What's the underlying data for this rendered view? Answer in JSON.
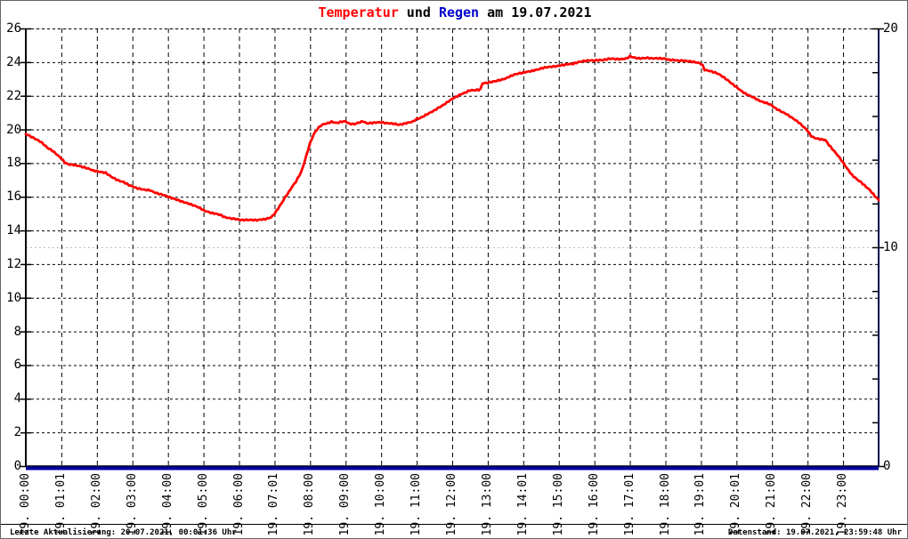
{
  "title": {
    "part_red": "Temperatur",
    "part_mid": " und ",
    "part_blue": "Regen",
    "part_end": " am 19.07.2021"
  },
  "colors": {
    "temperature": "#ff0000",
    "rain": "#0000a0",
    "title_red": "#ff0000",
    "title_blue": "#0000cc",
    "grid_major": "#000000",
    "grid_secondary": "#bdbdbd",
    "axis_left": "#000000",
    "axis_right": "#000050"
  },
  "footer": {
    "left": "Letzte Aktualisierung: 20.07.2021, 00:01:36 Uhr",
    "right": "Datenstand: 19.07.2021, 23:59:48 Uhr"
  },
  "chart_data": {
    "type": "line",
    "title": "Temperatur und Regen am 19.07.2021",
    "grid": true,
    "x_axis": {
      "range_hours": [
        0,
        24
      ],
      "tick_hours": [
        0,
        1,
        2,
        3,
        4,
        5,
        6,
        7,
        8,
        9,
        10,
        11,
        12,
        13,
        14,
        15,
        16,
        17,
        18,
        19,
        20,
        21,
        22,
        23
      ],
      "labels": [
        "19. 00:00",
        "19. 01:01",
        "19. 02:00",
        "19. 03:00",
        "19. 04:00",
        "19. 05:00",
        "19. 06:00",
        "19. 07:01",
        "19. 08:00",
        "19. 09:00",
        "19. 10:00",
        "19. 11:00",
        "19. 12:00",
        "19. 13:00",
        "19. 14:01",
        "19. 15:00",
        "19. 16:00",
        "19. 17:01",
        "19. 18:00",
        "19. 19:01",
        "19. 20:01",
        "19. 21:00",
        "19. 22:00",
        "19. 23:00"
      ]
    },
    "y_left": {
      "name": "Temperatur",
      "range": [
        0,
        26
      ],
      "tick_step": 2,
      "labels": [
        "0",
        "2",
        "4",
        "6",
        "8",
        "10",
        "12",
        "14",
        "16",
        "18",
        "20",
        "22",
        "24",
        "26"
      ]
    },
    "y_right": {
      "name": "Regen",
      "range": [
        0,
        20
      ],
      "tick_step": 2,
      "labels": [
        "0",
        "10",
        "20"
      ],
      "label_values": [
        0,
        10,
        20
      ],
      "secondary_grid_values": [
        10,
        20
      ]
    },
    "series": [
      {
        "name": "Temperatur",
        "axis": "left",
        "color": "#ff0000",
        "points": [
          [
            0.0,
            19.7
          ],
          [
            0.1,
            19.6
          ],
          [
            0.25,
            19.45
          ],
          [
            0.4,
            19.3
          ],
          [
            0.5,
            19.15
          ],
          [
            0.6,
            18.95
          ],
          [
            0.75,
            18.75
          ],
          [
            0.9,
            18.45
          ],
          [
            1.0,
            18.25
          ],
          [
            1.1,
            18.0
          ],
          [
            1.2,
            17.9
          ],
          [
            1.35,
            17.9
          ],
          [
            1.5,
            17.85
          ],
          [
            1.6,
            17.8
          ],
          [
            1.75,
            17.7
          ],
          [
            1.9,
            17.55
          ],
          [
            2.0,
            17.5
          ],
          [
            2.1,
            17.45
          ],
          [
            2.25,
            17.4
          ],
          [
            2.4,
            17.2
          ],
          [
            2.5,
            17.1
          ],
          [
            2.6,
            17.0
          ],
          [
            2.75,
            16.9
          ],
          [
            2.9,
            16.7
          ],
          [
            3.0,
            16.6
          ],
          [
            3.1,
            16.5
          ],
          [
            3.2,
            16.45
          ],
          [
            3.35,
            16.4
          ],
          [
            3.5,
            16.4
          ],
          [
            3.6,
            16.3
          ],
          [
            3.75,
            16.2
          ],
          [
            3.9,
            16.1
          ],
          [
            4.0,
            16.0
          ],
          [
            4.1,
            15.9
          ],
          [
            4.25,
            15.8
          ],
          [
            4.4,
            15.7
          ],
          [
            4.5,
            15.65
          ],
          [
            4.6,
            15.6
          ],
          [
            4.75,
            15.5
          ],
          [
            4.9,
            15.35
          ],
          [
            5.0,
            15.2
          ],
          [
            5.1,
            15.1
          ],
          [
            5.25,
            15.0
          ],
          [
            5.4,
            14.95
          ],
          [
            5.5,
            14.9
          ],
          [
            5.6,
            14.8
          ],
          [
            5.75,
            14.75
          ],
          [
            5.9,
            14.7
          ],
          [
            6.0,
            14.65
          ],
          [
            6.1,
            14.6
          ],
          [
            6.25,
            14.6
          ],
          [
            6.4,
            14.6
          ],
          [
            6.5,
            14.6
          ],
          [
            6.6,
            14.65
          ],
          [
            6.75,
            14.7
          ],
          [
            6.9,
            14.8
          ],
          [
            7.0,
            15.0
          ],
          [
            7.1,
            15.3
          ],
          [
            7.2,
            15.6
          ],
          [
            7.3,
            15.95
          ],
          [
            7.4,
            16.25
          ],
          [
            7.5,
            16.6
          ],
          [
            7.6,
            16.9
          ],
          [
            7.7,
            17.3
          ],
          [
            7.75,
            17.5
          ],
          [
            7.8,
            17.8
          ],
          [
            7.9,
            18.5
          ],
          [
            8.0,
            19.2
          ],
          [
            8.1,
            19.7
          ],
          [
            8.2,
            20.0
          ],
          [
            8.3,
            20.2
          ],
          [
            8.4,
            20.3
          ],
          [
            8.5,
            20.35
          ],
          [
            8.6,
            20.45
          ],
          [
            8.75,
            20.4
          ],
          [
            8.9,
            20.5
          ],
          [
            9.0,
            20.5
          ],
          [
            9.1,
            20.35
          ],
          [
            9.25,
            20.3
          ],
          [
            9.4,
            20.4
          ],
          [
            9.5,
            20.45
          ],
          [
            9.6,
            20.35
          ],
          [
            9.75,
            20.4
          ],
          [
            9.9,
            20.45
          ],
          [
            10.0,
            20.45
          ],
          [
            10.1,
            20.4
          ],
          [
            10.25,
            20.35
          ],
          [
            10.4,
            20.3
          ],
          [
            10.5,
            20.25
          ],
          [
            10.6,
            20.3
          ],
          [
            10.75,
            20.4
          ],
          [
            10.9,
            20.5
          ],
          [
            11.0,
            20.65
          ],
          [
            11.1,
            20.7
          ],
          [
            11.25,
            20.85
          ],
          [
            11.4,
            21.0
          ],
          [
            11.5,
            21.1
          ],
          [
            11.6,
            21.25
          ],
          [
            11.75,
            21.45
          ],
          [
            11.9,
            21.7
          ],
          [
            12.0,
            21.85
          ],
          [
            12.1,
            21.95
          ],
          [
            12.25,
            22.1
          ],
          [
            12.4,
            22.2
          ],
          [
            12.5,
            22.3
          ],
          [
            12.6,
            22.3
          ],
          [
            12.75,
            22.35
          ],
          [
            12.8,
            22.4
          ],
          [
            12.85,
            22.75
          ],
          [
            13.0,
            22.8
          ],
          [
            13.1,
            22.85
          ],
          [
            13.25,
            22.9
          ],
          [
            13.4,
            22.95
          ],
          [
            13.5,
            23.0
          ],
          [
            13.6,
            23.1
          ],
          [
            13.75,
            23.25
          ],
          [
            13.9,
            23.35
          ],
          [
            14.0,
            23.4
          ],
          [
            14.1,
            23.45
          ],
          [
            14.25,
            23.5
          ],
          [
            14.4,
            23.55
          ],
          [
            14.5,
            23.6
          ],
          [
            14.6,
            23.65
          ],
          [
            14.75,
            23.7
          ],
          [
            14.9,
            23.75
          ],
          [
            15.0,
            23.8
          ],
          [
            15.1,
            23.85
          ],
          [
            15.25,
            23.9
          ],
          [
            15.4,
            23.9
          ],
          [
            15.5,
            23.95
          ],
          [
            15.6,
            24.0
          ],
          [
            15.75,
            24.05
          ],
          [
            15.9,
            24.1
          ],
          [
            16.0,
            24.1
          ],
          [
            16.1,
            24.15
          ],
          [
            16.25,
            24.15
          ],
          [
            16.4,
            24.2
          ],
          [
            16.5,
            24.2
          ],
          [
            16.6,
            24.15
          ],
          [
            16.75,
            24.15
          ],
          [
            16.9,
            24.2
          ],
          [
            17.0,
            24.35
          ],
          [
            17.1,
            24.3
          ],
          [
            17.25,
            24.25
          ],
          [
            17.4,
            24.25
          ],
          [
            17.5,
            24.25
          ],
          [
            17.6,
            24.2
          ],
          [
            17.75,
            24.2
          ],
          [
            17.9,
            24.2
          ],
          [
            18.0,
            24.2
          ],
          [
            18.1,
            24.15
          ],
          [
            18.25,
            24.15
          ],
          [
            18.4,
            24.1
          ],
          [
            18.5,
            24.1
          ],
          [
            18.6,
            24.05
          ],
          [
            18.75,
            24.0
          ],
          [
            18.9,
            23.95
          ],
          [
            19.0,
            23.9
          ],
          [
            19.05,
            23.8
          ],
          [
            19.1,
            23.55
          ],
          [
            19.25,
            23.5
          ],
          [
            19.4,
            23.4
          ],
          [
            19.5,
            23.3
          ],
          [
            19.6,
            23.15
          ],
          [
            19.75,
            22.9
          ],
          [
            19.9,
            22.65
          ],
          [
            20.0,
            22.5
          ],
          [
            20.1,
            22.35
          ],
          [
            20.25,
            22.15
          ],
          [
            20.4,
            22.0
          ],
          [
            20.5,
            21.9
          ],
          [
            20.6,
            21.75
          ],
          [
            20.75,
            21.6
          ],
          [
            20.9,
            21.5
          ],
          [
            21.0,
            21.4
          ],
          [
            21.1,
            21.25
          ],
          [
            21.25,
            21.1
          ],
          [
            21.4,
            20.95
          ],
          [
            21.5,
            20.8
          ],
          [
            21.6,
            20.65
          ],
          [
            21.75,
            20.4
          ],
          [
            21.9,
            20.1
          ],
          [
            22.0,
            19.9
          ],
          [
            22.1,
            19.6
          ],
          [
            22.2,
            19.5
          ],
          [
            22.35,
            19.45
          ],
          [
            22.5,
            19.4
          ],
          [
            22.6,
            19.1
          ],
          [
            22.75,
            18.7
          ],
          [
            22.9,
            18.3
          ],
          [
            23.0,
            18.0
          ],
          [
            23.1,
            17.7
          ],
          [
            23.25,
            17.3
          ],
          [
            23.4,
            17.05
          ],
          [
            23.5,
            16.9
          ],
          [
            23.6,
            16.7
          ],
          [
            23.75,
            16.4
          ],
          [
            23.9,
            16.0
          ],
          [
            24.0,
            15.8
          ]
        ]
      },
      {
        "name": "Regen",
        "axis": "right",
        "color": "#0000a0",
        "points": [
          [
            0.0,
            0.0
          ],
          [
            24.0,
            0.0
          ]
        ]
      }
    ]
  }
}
